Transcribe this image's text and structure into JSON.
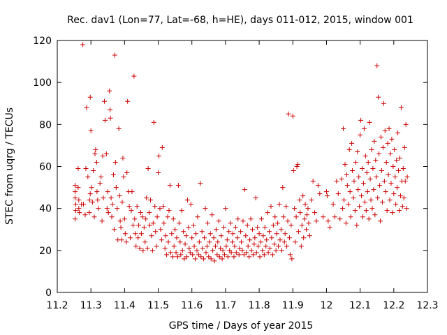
{
  "chart_data": {
    "type": "scatter",
    "title": "Rec. dav1 (Lon=77, Lat=-68, h=HE), days 011-012, 2015, window 001",
    "xlabel": "GPS time / Days of year 2015",
    "ylabel": "STEC from uqrg / TECUs",
    "xlim": [
      11.2,
      12.3
    ],
    "ylim": [
      0,
      120
    ],
    "x_ticks": [
      "11.2",
      "11.3",
      "11.4",
      "11.5",
      "11.6",
      "11.7",
      "11.8",
      "11.9",
      "12",
      "12.1",
      "12.2",
      "12.3"
    ],
    "y_ticks": [
      "0",
      "20",
      "40",
      "60",
      "80",
      "100",
      "120"
    ],
    "grid": false,
    "legend": "none",
    "marker": "+",
    "color": "#cc0000",
    "points": [
      [
        11.253,
        51
      ],
      [
        11.253,
        48
      ],
      [
        11.253,
        45
      ],
      [
        11.255,
        42
      ],
      [
        11.255,
        39
      ],
      [
        11.253,
        35
      ],
      [
        11.262,
        59
      ],
      [
        11.262,
        50
      ],
      [
        11.264,
        44
      ],
      [
        11.264,
        40
      ],
      [
        11.266,
        38
      ],
      [
        11.272,
        42
      ],
      [
        11.276,
        118
      ],
      [
        11.278,
        42
      ],
      [
        11.283,
        37
      ],
      [
        11.285,
        59
      ],
      [
        11.287,
        88
      ],
      [
        11.291,
        55
      ],
      [
        11.295,
        38
      ],
      [
        11.296,
        44
      ],
      [
        11.298,
        47
      ],
      [
        11.298,
        93
      ],
      [
        11.3,
        77
      ],
      [
        11.302,
        50
      ],
      [
        11.305,
        43
      ],
      [
        11.307,
        58
      ],
      [
        11.31,
        36
      ],
      [
        11.312,
        66
      ],
      [
        11.314,
        68
      ],
      [
        11.317,
        62
      ],
      [
        11.318,
        48
      ],
      [
        11.32,
        44
      ],
      [
        11.322,
        40
      ],
      [
        11.327,
        52
      ],
      [
        11.33,
        55
      ],
      [
        11.333,
        34
      ],
      [
        11.335,
        65
      ],
      [
        11.337,
        45
      ],
      [
        11.34,
        91
      ],
      [
        11.342,
        82
      ],
      [
        11.346,
        66
      ],
      [
        11.348,
        40
      ],
      [
        11.35,
        48
      ],
      [
        11.352,
        38
      ],
      [
        11.355,
        96
      ],
      [
        11.357,
        87
      ],
      [
        11.358,
        83
      ],
      [
        11.36,
        45
      ],
      [
        11.362,
        36
      ],
      [
        11.364,
        42
      ],
      [
        11.367,
        56
      ],
      [
        11.369,
        30
      ],
      [
        11.371,
        113
      ],
      [
        11.373,
        62
      ],
      [
        11.375,
        50
      ],
      [
        11.378,
        40
      ],
      [
        11.38,
        25
      ],
      [
        11.383,
        78
      ],
      [
        11.385,
        46
      ],
      [
        11.387,
        34
      ],
      [
        11.389,
        31
      ],
      [
        11.391,
        25
      ],
      [
        11.393,
        43
      ],
      [
        11.395,
        64
      ],
      [
        11.397,
        55
      ],
      [
        11.4,
        35
      ],
      [
        11.402,
        28
      ],
      [
        11.405,
        24
      ],
      [
        11.407,
        57
      ],
      [
        11.409,
        91
      ],
      [
        11.412,
        48
      ],
      [
        11.414,
        41
      ],
      [
        11.417,
        26
      ],
      [
        11.42,
        39
      ],
      [
        11.422,
        48
      ],
      [
        11.425,
        32
      ],
      [
        11.428,
        103
      ],
      [
        11.43,
        35
      ],
      [
        11.432,
        28
      ],
      [
        11.434,
        22
      ],
      [
        11.437,
        41
      ],
      [
        11.44,
        26
      ],
      [
        11.442,
        32
      ],
      [
        11.445,
        21
      ],
      [
        11.448,
        38
      ],
      [
        11.45,
        28
      ],
      [
        11.453,
        36
      ],
      [
        11.455,
        20
      ],
      [
        11.458,
        31
      ],
      [
        11.461,
        24
      ],
      [
        11.463,
        35
      ],
      [
        11.465,
        45
      ],
      [
        11.468,
        21
      ],
      [
        11.47,
        59
      ],
      [
        11.473,
        38
      ],
      [
        11.475,
        32
      ],
      [
        11.477,
        44
      ],
      [
        11.48,
        27
      ],
      [
        11.483,
        20
      ],
      [
        11.485,
        33
      ],
      [
        11.487,
        81
      ],
      [
        11.49,
        41
      ],
      [
        11.492,
        29
      ],
      [
        11.495,
        22
      ],
      [
        11.497,
        36
      ],
      [
        11.5,
        57
      ],
      [
        11.502,
        65
      ],
      [
        11.505,
        40
      ],
      [
        11.507,
        30
      ],
      [
        11.51,
        25
      ],
      [
        11.512,
        69
      ],
      [
        11.515,
        41
      ],
      [
        11.517,
        33
      ],
      [
        11.52,
        21
      ],
      [
        11.522,
        27
      ],
      [
        11.525,
        18
      ],
      [
        11.528,
        36
      ],
      [
        11.53,
        24
      ],
      [
        11.532,
        39
      ],
      [
        11.535,
        51
      ],
      [
        11.537,
        19
      ],
      [
        11.54,
        28
      ],
      [
        11.543,
        17
      ],
      [
        11.545,
        35
      ],
      [
        11.547,
        22
      ],
      [
        11.55,
        30
      ],
      [
        11.553,
        19
      ],
      [
        11.555,
        26
      ],
      [
        11.558,
        17
      ],
      [
        11.56,
        51
      ],
      [
        11.562,
        33
      ],
      [
        11.565,
        24
      ],
      [
        11.567,
        18
      ],
      [
        11.57,
        39
      ],
      [
        11.572,
        20
      ],
      [
        11.575,
        29
      ],
      [
        11.577,
        16
      ],
      [
        11.58,
        23
      ],
      [
        11.583,
        27
      ],
      [
        11.585,
        17
      ],
      [
        11.587,
        44
      ],
      [
        11.59,
        31
      ],
      [
        11.592,
        21
      ],
      [
        11.595,
        19
      ],
      [
        11.597,
        42
      ],
      [
        11.6,
        26
      ],
      [
        11.602,
        18
      ],
      [
        11.605,
        32
      ],
      [
        11.607,
        22
      ],
      [
        11.61,
        16
      ],
      [
        11.612,
        28
      ],
      [
        11.615,
        20
      ],
      [
        11.617,
        36
      ],
      [
        11.62,
        18
      ],
      [
        11.622,
        24
      ],
      [
        11.625,
        52
      ],
      [
        11.627,
        17
      ],
      [
        11.63,
        29
      ],
      [
        11.632,
        21
      ],
      [
        11.635,
        16
      ],
      [
        11.637,
        26
      ],
      [
        11.64,
        40
      ],
      [
        11.642,
        19
      ],
      [
        11.645,
        22
      ],
      [
        11.647,
        33
      ],
      [
        11.65,
        17
      ],
      [
        11.652,
        24
      ],
      [
        11.655,
        28
      ],
      [
        11.657,
        16
      ],
      [
        11.66,
        37
      ],
      [
        11.662,
        20
      ],
      [
        11.665,
        26
      ],
      [
        11.667,
        15
      ],
      [
        11.67,
        22
      ],
      [
        11.672,
        30
      ],
      [
        11.675,
        18
      ],
      [
        11.677,
        24
      ],
      [
        11.68,
        34
      ],
      [
        11.682,
        17
      ],
      [
        11.685,
        21
      ],
      [
        11.687,
        27
      ],
      [
        11.69,
        16
      ],
      [
        11.692,
        20
      ],
      [
        11.695,
        31
      ],
      [
        11.697,
        18
      ],
      [
        11.7,
        40
      ],
      [
        11.702,
        22
      ],
      [
        11.705,
        25
      ],
      [
        11.707,
        17
      ],
      [
        11.71,
        29
      ],
      [
        11.712,
        20
      ],
      [
        11.715,
        33
      ],
      [
        11.717,
        19
      ],
      [
        11.72,
        24
      ],
      [
        11.722,
        28
      ],
      [
        11.725,
        17
      ],
      [
        11.727,
        22
      ],
      [
        11.73,
        31
      ],
      [
        11.732,
        19
      ],
      [
        11.735,
        26
      ],
      [
        11.737,
        35
      ],
      [
        11.74,
        18
      ],
      [
        11.742,
        21
      ],
      [
        11.745,
        29
      ],
      [
        11.747,
        24
      ],
      [
        11.75,
        20
      ],
      [
        11.752,
        34
      ],
      [
        11.755,
        18
      ],
      [
        11.757,
        49
      ],
      [
        11.76,
        27
      ],
      [
        11.762,
        19
      ],
      [
        11.765,
        32
      ],
      [
        11.767,
        22
      ],
      [
        11.77,
        17
      ],
      [
        11.772,
        25
      ],
      [
        11.775,
        35
      ],
      [
        11.777,
        20
      ],
      [
        11.78,
        30
      ],
      [
        11.782,
        18
      ],
      [
        11.785,
        23
      ],
      [
        11.787,
        26
      ],
      [
        11.79,
        45
      ],
      [
        11.792,
        19
      ],
      [
        11.795,
        31
      ],
      [
        11.797,
        22
      ],
      [
        11.8,
        28
      ],
      [
        11.802,
        17
      ],
      [
        11.805,
        24
      ],
      [
        11.807,
        35
      ],
      [
        11.81,
        20
      ],
      [
        11.812,
        27
      ],
      [
        11.815,
        18
      ],
      [
        11.817,
        31
      ],
      [
        11.82,
        22
      ],
      [
        11.822,
        25
      ],
      [
        11.825,
        38
      ],
      [
        11.827,
        19
      ],
      [
        11.83,
        29
      ],
      [
        11.832,
        21
      ],
      [
        11.835,
        41
      ],
      [
        11.837,
        26
      ],
      [
        11.84,
        18
      ],
      [
        11.842,
        32
      ],
      [
        11.845,
        23
      ],
      [
        11.847,
        36
      ],
      [
        11.85,
        20
      ],
      [
        11.852,
        28
      ],
      [
        11.855,
        33
      ],
      [
        11.857,
        22
      ],
      [
        11.86,
        42
      ],
      [
        11.862,
        25
      ],
      [
        11.865,
        30
      ],
      [
        11.867,
        20
      ],
      [
        11.87,
        50
      ],
      [
        11.872,
        36
      ],
      [
        11.875,
        24
      ],
      [
        11.877,
        28
      ],
      [
        11.88,
        41
      ],
      [
        11.882,
        22
      ],
      [
        11.885,
        34
      ],
      [
        11.887,
        85
      ],
      [
        11.89,
        26
      ],
      [
        11.892,
        18
      ],
      [
        11.895,
        32
      ],
      [
        11.897,
        16
      ],
      [
        11.9,
        84
      ],
      [
        11.902,
        58
      ],
      [
        11.905,
        40
      ],
      [
        11.907,
        24
      ],
      [
        11.91,
        36
      ],
      [
        11.912,
        60
      ],
      [
        11.915,
        61
      ],
      [
        11.917,
        29
      ],
      [
        11.92,
        44
      ],
      [
        11.922,
        38
      ],
      [
        11.925,
        22
      ],
      [
        11.927,
        32
      ],
      [
        11.93,
        46
      ],
      [
        11.932,
        26
      ],
      [
        11.935,
        35
      ],
      [
        11.937,
        42
      ],
      [
        11.94,
        30
      ],
      [
        11.942,
        37
      ],
      [
        11.945,
        40
      ],
      [
        11.947,
        33
      ],
      [
        11.95,
        27
      ],
      [
        11.955,
        44
      ],
      [
        11.96,
        53
      ],
      [
        11.965,
        38
      ],
      [
        11.97,
        34
      ],
      [
        11.975,
        51
      ],
      [
        11.98,
        47
      ],
      [
        11.99,
        36
      ],
      [
        12.0,
        48
      ],
      [
        12.002,
        46
      ],
      [
        12.005,
        34
      ],
      [
        12.01,
        31
      ],
      [
        12.02,
        42
      ],
      [
        12.025,
        36
      ],
      [
        12.03,
        53
      ],
      [
        12.035,
        47
      ],
      [
        12.04,
        35
      ],
      [
        12.045,
        54
      ],
      [
        12.048,
        40
      ],
      [
        12.05,
        78
      ],
      [
        12.052,
        44
      ],
      [
        12.055,
        61
      ],
      [
        12.058,
        33
      ],
      [
        12.06,
        56
      ],
      [
        12.062,
        51
      ],
      [
        12.065,
        42
      ],
      [
        12.068,
        68
      ],
      [
        12.07,
        48
      ],
      [
        12.072,
        36
      ],
      [
        12.075,
        71
      ],
      [
        12.077,
        58
      ],
      [
        12.08,
        45
      ],
      [
        12.082,
        53
      ],
      [
        12.085,
        39
      ],
      [
        12.087,
        62
      ],
      [
        12.09,
        32
      ],
      [
        12.092,
        67
      ],
      [
        12.094,
        49
      ],
      [
        12.096,
        55
      ],
      [
        12.098,
        41
      ],
      [
        12.1,
        75
      ],
      [
        12.102,
        82
      ],
      [
        12.104,
        46
      ],
      [
        12.106,
        59
      ],
      [
        12.108,
        36
      ],
      [
        12.11,
        52
      ],
      [
        12.112,
        78
      ],
      [
        12.114,
        43
      ],
      [
        12.116,
        65
      ],
      [
        12.118,
        39
      ],
      [
        12.12,
        57
      ],
      [
        12.122,
        48
      ],
      [
        12.124,
        62
      ],
      [
        12.126,
        35
      ],
      [
        12.128,
        81
      ],
      [
        12.13,
        54
      ],
      [
        12.132,
        44
      ],
      [
        12.134,
        68
      ],
      [
        12.136,
        40
      ],
      [
        12.138,
        59
      ],
      [
        12.14,
        49
      ],
      [
        12.142,
        72
      ],
      [
        12.144,
        37
      ],
      [
        12.146,
        63
      ],
      [
        12.148,
        55
      ],
      [
        12.15,
        108
      ],
      [
        12.152,
        45
      ],
      [
        12.154,
        93
      ],
      [
        12.156,
        66
      ],
      [
        12.158,
        51
      ],
      [
        12.16,
        34
      ],
      [
        12.162,
        74
      ],
      [
        12.164,
        58
      ],
      [
        12.166,
        43
      ],
      [
        12.168,
        69
      ],
      [
        12.17,
        90
      ],
      [
        12.172,
        53
      ],
      [
        12.174,
        77
      ],
      [
        12.176,
        48
      ],
      [
        12.178,
        62
      ],
      [
        12.18,
        39
      ],
      [
        12.182,
        71
      ],
      [
        12.184,
        56
      ],
      [
        12.186,
        78
      ],
      [
        12.188,
        44
      ],
      [
        12.19,
        66
      ],
      [
        12.192,
        52
      ],
      [
        12.194,
        73
      ],
      [
        12.196,
        38
      ],
      [
        12.198,
        60
      ],
      [
        12.2,
        47
      ],
      [
        12.202,
        68
      ],
      [
        12.204,
        55
      ],
      [
        12.206,
        42
      ],
      [
        12.208,
        63
      ],
      [
        12.21,
        50
      ],
      [
        12.212,
        76
      ],
      [
        12.214,
        58
      ],
      [
        12.216,
        39
      ],
      [
        12.218,
        64
      ],
      [
        12.22,
        46
      ],
      [
        12.222,
        88
      ],
      [
        12.224,
        53
      ],
      [
        12.226,
        41
      ],
      [
        12.228,
        59
      ],
      [
        12.23,
        45
      ],
      [
        12.232,
        69
      ],
      [
        12.234,
        53
      ],
      [
        12.236,
        80
      ],
      [
        12.238,
        40
      ],
      [
        12.24,
        55
      ]
    ]
  }
}
